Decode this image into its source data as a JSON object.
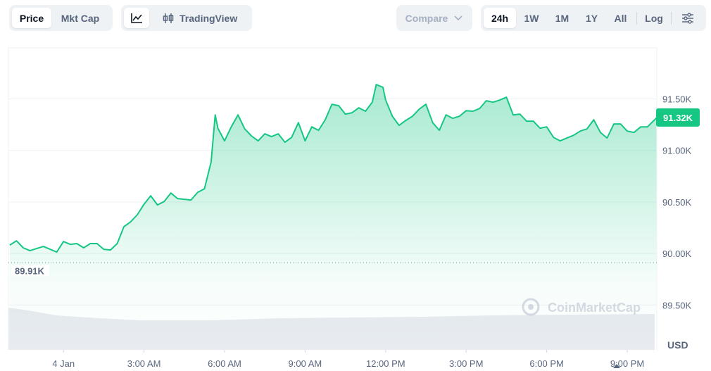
{
  "toolbar": {
    "views": [
      "Price",
      "Mkt Cap"
    ],
    "chart_style": "TradingView",
    "compare": "Compare",
    "ranges": [
      "24h",
      "1W",
      "1M",
      "1Y",
      "All"
    ],
    "log": "Log"
  },
  "chart_data": {
    "type": "line",
    "color": "#16c784",
    "x": [
      -2.0,
      -1.75,
      -1.5,
      -1.25,
      -1.0,
      -0.75,
      -0.5,
      -0.25,
      0,
      0.25,
      0.5,
      0.75,
      1.0,
      1.25,
      1.5,
      1.75,
      2.0,
      2.25,
      2.5,
      2.75,
      3.0,
      3.25,
      3.5,
      3.75,
      4.0,
      4.25,
      4.5,
      4.75,
      5.0,
      5.25,
      5.5,
      5.65,
      5.75,
      6.0,
      6.25,
      6.5,
      6.75,
      7.0,
      7.25,
      7.5,
      7.75,
      8.0,
      8.25,
      8.5,
      8.75,
      9.0,
      9.25,
      9.5,
      9.75,
      10.0,
      10.25,
      10.5,
      10.75,
      11.0,
      11.25,
      11.5,
      11.65,
      11.9,
      12.0,
      12.25,
      12.5,
      12.75,
      13.0,
      13.25,
      13.5,
      13.75,
      14.0,
      14.25,
      14.5,
      14.75,
      15.0,
      15.25,
      15.5,
      15.75,
      16.0,
      16.25,
      16.5,
      16.75,
      17.0,
      17.25,
      17.5,
      17.75,
      18.0,
      18.25,
      18.5,
      18.75,
      19.0,
      19.25,
      19.5,
      19.75,
      20.0,
      20.25,
      20.5,
      20.75,
      21.0,
      21.25,
      21.5,
      21.75,
      22.1
    ],
    "series": [
      {
        "name": "Price",
        "color": "#16c784",
        "values": [
          90082,
          90123,
          90055,
          90027,
          90048,
          90068,
          90041,
          90014,
          90116,
          90089,
          90096,
          90055,
          90096,
          90096,
          90041,
          90034,
          90096,
          90260,
          90307,
          90376,
          90478,
          90560,
          90471,
          90505,
          90587,
          90533,
          90526,
          90519,
          90594,
          90628,
          90888,
          91345,
          91216,
          91093,
          91229,
          91345,
          91209,
          91141,
          91093,
          91161,
          91134,
          91161,
          91079,
          91127,
          91270,
          91093,
          91229,
          91195,
          91298,
          91448,
          91434,
          91352,
          91366,
          91414,
          91380,
          91468,
          91639,
          91612,
          91489,
          91332,
          91243,
          91291,
          91332,
          91400,
          91448,
          91270,
          91195,
          91345,
          91311,
          91332,
          91386,
          91380,
          91407,
          91482,
          91468,
          91489,
          91516,
          91345,
          91352,
          91284,
          91284,
          91216,
          91229,
          91127,
          91093,
          91120,
          91147,
          91188,
          91209,
          91298,
          91175,
          91120,
          91257,
          91257,
          91188,
          91175,
          91229,
          91229,
          91318
        ]
      }
    ],
    "xlim": [
      -2.05,
      22.1
    ],
    "xticks": [
      {
        "value": 0,
        "label": "4 Jan"
      },
      {
        "value": 3,
        "label": "3:00 AM"
      },
      {
        "value": 6,
        "label": "6:00 AM"
      },
      {
        "value": 9,
        "label": "9:00 AM"
      },
      {
        "value": 12,
        "label": "12:00 PM"
      },
      {
        "value": 15,
        "label": "3:00 PM"
      },
      {
        "value": 18,
        "label": "6:00 PM"
      },
      {
        "value": 21,
        "label": "9:00 PM"
      }
    ],
    "ylim": [
      89065,
      91995
    ],
    "yticks": [
      {
        "value": 89500,
        "label": "89.50K"
      },
      {
        "value": 90000,
        "label": "90.00K"
      },
      {
        "value": 90500,
        "label": "90.50K"
      },
      {
        "value": 91000,
        "label": "91.00K"
      },
      {
        "value": 91500,
        "label": "91.50K"
      }
    ],
    "reference_line": {
      "value": 89910,
      "label": "89.91K"
    },
    "current_price": {
      "value": 91320,
      "label": "91.32K"
    },
    "currency": "USD",
    "watermark": "CoinMarketCap",
    "grid": true
  }
}
